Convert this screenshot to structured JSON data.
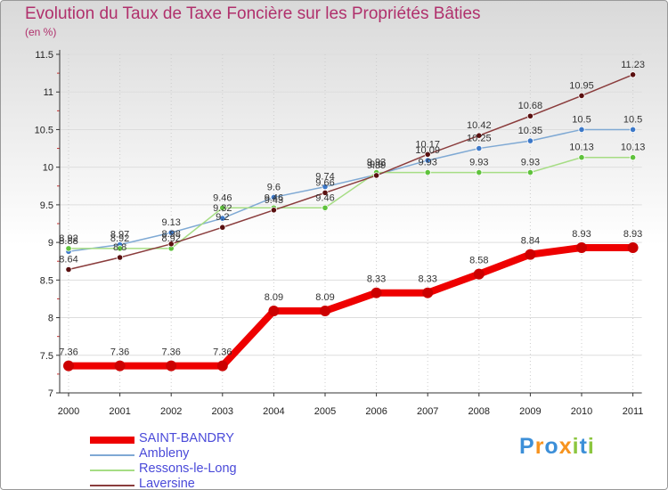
{
  "title": "Evolution du Taux de Taxe Foncière sur les Propriétés Bâties",
  "unit_label": "(en %)",
  "logo": {
    "text": "Proxiti",
    "letters": [
      {
        "char": "P",
        "color": "#3c8fd8"
      },
      {
        "char": "r",
        "color": "#f7931e"
      },
      {
        "char": "o",
        "color": "#3c8fd8"
      },
      {
        "char": "x",
        "color": "#f7931e"
      },
      {
        "char": "i",
        "color": "#8cc63f"
      },
      {
        "char": "t",
        "color": "#3c8fd8"
      },
      {
        "char": "i",
        "color": "#8cc63f"
      }
    ]
  },
  "chart_data": {
    "type": "line",
    "title": "Evolution du Taux de Taxe Foncière sur les Propriétés Bâties",
    "ylabel": "(en %)",
    "xlabel": "",
    "categories": [
      "2000",
      "2001",
      "2002",
      "2003",
      "2004",
      "2005",
      "2006",
      "2007",
      "2008",
      "2009",
      "2010",
      "2011"
    ],
    "ylim": [
      7,
      11.5
    ],
    "y_ticks": [
      "7",
      "7.5",
      "8",
      "8.5",
      "9",
      "9.5",
      "10",
      "10.5",
      "11",
      "11.5"
    ],
    "legend_position": "bottom-left",
    "series": [
      {
        "name": "SAINT-BANDRY",
        "color": "#ee0000",
        "marker_color": "#cc0000",
        "bold": true,
        "values": [
          7.36,
          7.36,
          7.36,
          7.36,
          8.09,
          8.09,
          8.33,
          8.33,
          8.58,
          8.84,
          8.93,
          8.93
        ],
        "labels": [
          "7.36",
          "7.36",
          "7.36",
          "7.36",
          "8.09",
          "8.09",
          "8.33",
          "8.33",
          "8.58",
          "8.84",
          "8.93",
          "8.93"
        ]
      },
      {
        "name": "Ambleny",
        "color": "#7fa9d4",
        "marker_color": "#3c78c8",
        "bold": false,
        "values": [
          8.88,
          8.97,
          9.13,
          9.32,
          9.6,
          9.74,
          9.9,
          10.09,
          10.25,
          10.35,
          10.5,
          10.5
        ],
        "labels": [
          "8.88",
          "8.97",
          "9.13",
          "9.32",
          "9.6",
          "9.74",
          "9.9",
          "10.09",
          "10.25",
          "10.35",
          "10.5",
          "10.5"
        ]
      },
      {
        "name": "Ressons-le-Long",
        "color": "#a6dd84",
        "marker_color": "#5fc23c",
        "bold": false,
        "values": [
          8.92,
          8.92,
          8.92,
          9.46,
          9.46,
          9.46,
          9.93,
          9.93,
          9.93,
          9.93,
          10.13,
          10.13
        ],
        "labels": [
          "8.92",
          "8.92",
          "8.92",
          "9.46",
          "9.46",
          "9.46",
          "9.93",
          "9.93",
          "9.93",
          "9.93",
          "10.13",
          "10.13"
        ]
      },
      {
        "name": "Laversine",
        "color": "#8a3c3c",
        "marker_color": "#5a1010",
        "bold": false,
        "values": [
          8.64,
          8.8,
          8.98,
          9.2,
          9.43,
          9.66,
          9.89,
          10.17,
          10.42,
          10.68,
          10.95,
          11.23
        ],
        "labels": [
          "8.64",
          "8.8",
          "8.98",
          "9.2",
          "9.43",
          "9.66",
          "9.89",
          "10.17",
          "10.42",
          "10.68",
          "10.95",
          "11.23"
        ]
      }
    ]
  }
}
